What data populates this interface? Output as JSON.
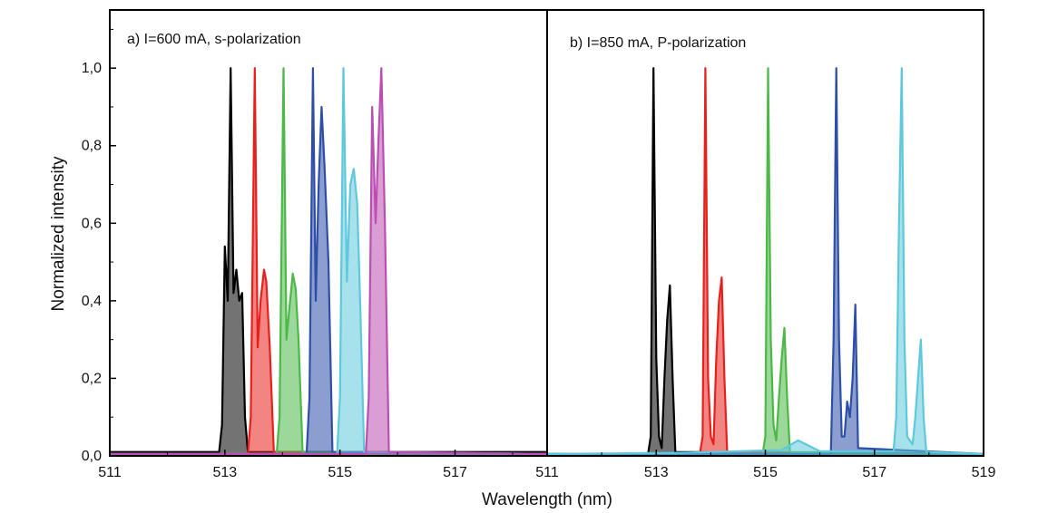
{
  "chart_data": {
    "type": "line",
    "ylabel": "Normalized intensity",
    "xlabel": "Wavelength (nm)",
    "ylim": [
      0,
      1.15
    ],
    "yticks": [
      0.0,
      0.2,
      0.4,
      0.6,
      0.8,
      1.0
    ],
    "ytick_labels": [
      "0,0",
      "0,2",
      "0,4",
      "0,6",
      "0,8",
      "1,0"
    ],
    "grid": false,
    "panels": [
      {
        "label": "a) I=600 mA, s-polarization",
        "xlim": [
          511,
          518.6
        ],
        "xticks": [
          511,
          513,
          515,
          517
        ],
        "xtick_labels": [
          "511",
          "513",
          "515",
          "517"
        ],
        "series": [
          {
            "color": "#000000",
            "x": [
              511,
              512.9,
              512.95,
              513.0,
              513.05,
              513.1,
              513.15,
              513.2,
              513.25,
              513.3,
              513.35,
              513.4,
              518.6
            ],
            "y": [
              0.01,
              0.01,
              0.08,
              0.54,
              0.4,
              1.0,
              0.42,
              0.48,
              0.4,
              0.42,
              0.1,
              0.01,
              0.01
            ]
          },
          {
            "color": "#e8201c",
            "x": [
              511,
              513.4,
              513.45,
              513.52,
              513.57,
              513.62,
              513.68,
              513.72,
              513.78,
              513.85,
              518.6
            ],
            "y": [
              0.005,
              0.005,
              0.1,
              1.0,
              0.28,
              0.4,
              0.48,
              0.45,
              0.28,
              0.01,
              0.005
            ]
          },
          {
            "color": "#4cb848",
            "x": [
              511,
              513.9,
              513.95,
              514.02,
              514.07,
              514.12,
              514.18,
              514.23,
              514.28,
              514.35,
              518.6
            ],
            "y": [
              0.005,
              0.005,
              0.1,
              1.0,
              0.3,
              0.38,
              0.47,
              0.43,
              0.3,
              0.01,
              0.005
            ]
          },
          {
            "color": "#2e4fa8",
            "x": [
              511,
              514.42,
              514.47,
              514.53,
              514.58,
              514.63,
              514.68,
              514.73,
              514.8,
              514.87,
              518.6
            ],
            "y": [
              0.005,
              0.005,
              0.15,
              1.0,
              0.4,
              0.7,
              0.9,
              0.75,
              0.5,
              0.01,
              0.005
            ]
          },
          {
            "color": "#5ec8dc",
            "x": [
              511,
              514.95,
              515.0,
              515.06,
              515.12,
              515.18,
              515.24,
              515.3,
              515.35,
              515.42,
              518.6
            ],
            "y": [
              0.005,
              0.005,
              0.15,
              1.0,
              0.45,
              0.7,
              0.74,
              0.65,
              0.4,
              0.01,
              0.005
            ]
          },
          {
            "color": "#bb4fb3",
            "x": [
              511,
              515.45,
              515.5,
              515.56,
              515.62,
              515.67,
              515.72,
              515.78,
              515.85,
              518.6
            ],
            "y": [
              0.005,
              0.005,
              0.15,
              0.9,
              0.6,
              0.82,
              1.0,
              0.6,
              0.01,
              0.005
            ]
          }
        ]
      },
      {
        "label": "b) I=850 mA, P-polarization",
        "xlim": [
          511,
          519
        ],
        "xticks": [
          511,
          513,
          515,
          517,
          519
        ],
        "xtick_labels": [
          "511",
          "513",
          "515",
          "517",
          "519"
        ],
        "series": [
          {
            "color": "#000000",
            "x": [
              511,
              512.85,
              512.9,
              512.95,
              513.0,
              513.05,
              513.1,
              513.15,
              513.2,
              513.25,
              513.3,
              513.35,
              519
            ],
            "y": [
              0.005,
              0.005,
              0.05,
              1.0,
              0.25,
              0.05,
              0.02,
              0.2,
              0.35,
              0.44,
              0.2,
              0.01,
              0.005
            ]
          },
          {
            "color": "#e8201c",
            "x": [
              511,
              513.8,
              513.85,
              513.9,
              513.95,
              514.0,
              514.05,
              514.1,
              514.15,
              514.2,
              514.25,
              514.3,
              519
            ],
            "y": [
              0.005,
              0.005,
              0.05,
              1.0,
              0.2,
              0.05,
              0.03,
              0.25,
              0.4,
              0.46,
              0.2,
              0.01,
              0.005
            ]
          },
          {
            "color": "#4cb848",
            "x": [
              511,
              514.95,
              515.0,
              515.05,
              515.1,
              515.15,
              515.2,
              515.25,
              515.3,
              515.35,
              515.4,
              515.45,
              519
            ],
            "y": [
              0.005,
              0.005,
              0.05,
              1.0,
              0.3,
              0.08,
              0.04,
              0.15,
              0.25,
              0.33,
              0.15,
              0.01,
              0.005
            ]
          },
          {
            "color": "#2e4fa8",
            "x": [
              511,
              516.2,
              516.25,
              516.3,
              516.35,
              516.4,
              516.45,
              516.5,
              516.55,
              516.6,
              516.65,
              516.7,
              519
            ],
            "y": [
              0.005,
              0.005,
              0.3,
              1.0,
              0.3,
              0.05,
              0.05,
              0.14,
              0.1,
              0.2,
              0.39,
              0.02,
              0.005
            ]
          },
          {
            "color": "#5ec8dc",
            "x": [
              511,
              513.5,
              514.5,
              515.3,
              515.6,
              516.0,
              517.35,
              517.4,
              517.45,
              517.5,
              517.55,
              517.6,
              517.7,
              517.75,
              517.8,
              517.85,
              517.9,
              517.95,
              519
            ],
            "y": [
              0.005,
              0.008,
              0.012,
              0.015,
              0.04,
              0.012,
              0.012,
              0.1,
              0.6,
              1.0,
              0.3,
              0.05,
              0.03,
              0.1,
              0.2,
              0.3,
              0.1,
              0.01,
              0.005
            ]
          }
        ]
      }
    ]
  }
}
